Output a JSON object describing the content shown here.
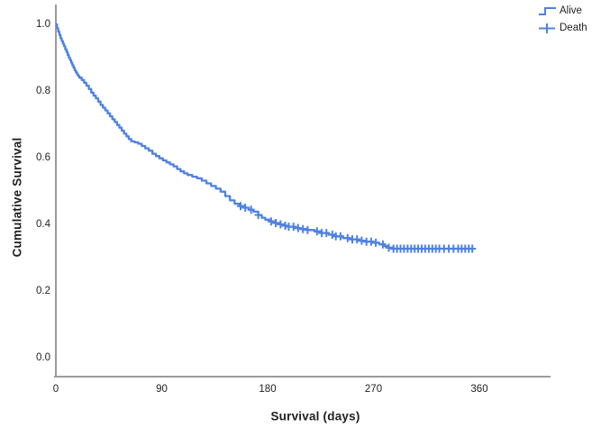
{
  "chart_data": {
    "type": "line",
    "subtype": "kaplan_meier_step",
    "title": "",
    "xlabel": "Survival (days)",
    "ylabel": "Cumulative Survival",
    "xticks": [
      0,
      90,
      180,
      270,
      360
    ],
    "yticks": [
      1.0,
      0.8,
      0.6,
      0.4,
      0.2,
      0.0
    ],
    "xlim": [
      0,
      420
    ],
    "ylim": [
      0,
      1.06
    ],
    "grid": false,
    "legend_position": "top-right",
    "line_color": "#4e81e0",
    "axis_color": "#9b9b9b",
    "text_color": "#1f1f1f",
    "series": [
      {
        "name": "Cumulative survival",
        "points": [
          [
            0,
            1.0
          ],
          [
            1,
            0.988
          ],
          [
            2,
            0.978
          ],
          [
            3,
            0.968
          ],
          [
            4,
            0.958
          ],
          [
            5,
            0.95
          ],
          [
            6,
            0.942
          ],
          [
            7,
            0.934
          ],
          [
            8,
            0.925
          ],
          [
            9,
            0.917
          ],
          [
            10,
            0.908
          ],
          [
            11,
            0.9
          ],
          [
            12,
            0.893
          ],
          [
            13,
            0.885
          ],
          [
            14,
            0.877
          ],
          [
            15,
            0.87
          ],
          [
            16,
            0.862
          ],
          [
            17,
            0.856
          ],
          [
            18,
            0.85
          ],
          [
            19,
            0.845
          ],
          [
            20,
            0.84
          ],
          [
            22,
            0.833
          ],
          [
            24,
            0.825
          ],
          [
            26,
            0.816
          ],
          [
            28,
            0.806
          ],
          [
            30,
            0.795
          ],
          [
            32,
            0.786
          ],
          [
            34,
            0.778
          ],
          [
            36,
            0.768
          ],
          [
            38,
            0.758
          ],
          [
            40,
            0.75
          ],
          [
            42,
            0.742
          ],
          [
            44,
            0.733
          ],
          [
            46,
            0.724
          ],
          [
            48,
            0.715
          ],
          [
            50,
            0.707
          ],
          [
            52,
            0.698
          ],
          [
            54,
            0.69
          ],
          [
            56,
            0.681
          ],
          [
            58,
            0.672
          ],
          [
            60,
            0.664
          ],
          [
            62,
            0.656
          ],
          [
            64,
            0.649
          ],
          [
            67,
            0.646
          ],
          [
            70,
            0.642
          ],
          [
            73,
            0.635
          ],
          [
            76,
            0.628
          ],
          [
            79,
            0.621
          ],
          [
            82,
            0.612
          ],
          [
            85,
            0.605
          ],
          [
            88,
            0.598
          ],
          [
            91,
            0.592
          ],
          [
            94,
            0.586
          ],
          [
            97,
            0.58
          ],
          [
            100,
            0.574
          ],
          [
            103,
            0.566
          ],
          [
            106,
            0.559
          ],
          [
            109,
            0.553
          ],
          [
            112,
            0.548
          ],
          [
            116,
            0.543
          ],
          [
            120,
            0.538
          ],
          [
            124,
            0.531
          ],
          [
            128,
            0.523
          ],
          [
            132,
            0.515
          ],
          [
            136,
            0.507
          ],
          [
            140,
            0.498
          ],
          [
            144,
            0.485
          ],
          [
            148,
            0.472
          ],
          [
            152,
            0.462
          ],
          [
            156,
            0.455
          ],
          [
            160,
            0.45
          ],
          [
            164,
            0.444
          ],
          [
            168,
            0.438
          ],
          [
            172,
            0.428
          ],
          [
            175,
            0.42
          ],
          [
            178,
            0.414
          ],
          [
            182,
            0.409
          ],
          [
            186,
            0.404
          ],
          [
            190,
            0.4
          ],
          [
            194,
            0.396
          ],
          [
            198,
            0.393
          ],
          [
            203,
            0.389
          ],
          [
            208,
            0.386
          ],
          [
            214,
            0.383
          ],
          [
            220,
            0.379
          ],
          [
            226,
            0.374
          ],
          [
            232,
            0.369
          ],
          [
            238,
            0.364
          ],
          [
            244,
            0.359
          ],
          [
            250,
            0.355
          ],
          [
            257,
            0.351
          ],
          [
            264,
            0.348
          ],
          [
            270,
            0.345
          ],
          [
            275,
            0.34
          ],
          [
            279,
            0.335
          ],
          [
            283,
            0.33
          ],
          [
            287,
            0.327
          ],
          [
            355,
            0.327
          ]
        ]
      }
    ],
    "censor_days": [
      157,
      161,
      166,
      172,
      183,
      187,
      191,
      195,
      198,
      202,
      206,
      210,
      214,
      222,
      226,
      230,
      235,
      238,
      242,
      248,
      252,
      256,
      260,
      264,
      268,
      272,
      278,
      283,
      287,
      290,
      293,
      296,
      299,
      302,
      305,
      308,
      311,
      314,
      317,
      320,
      323,
      326,
      330,
      334,
      338,
      342,
      345,
      348,
      351,
      354
    ]
  },
  "legend": {
    "items": [
      {
        "label": "Alive",
        "symbol": "step-line"
      },
      {
        "label": "Death",
        "symbol": "plus-mark"
      }
    ]
  }
}
